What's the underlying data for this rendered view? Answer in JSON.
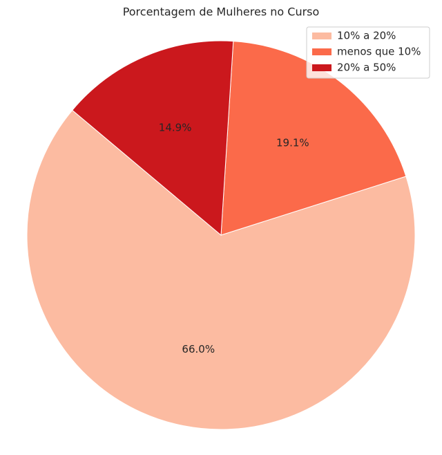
{
  "chart_data": {
    "type": "pie",
    "title": "Porcentagem de Mulheres no Curso",
    "categories": [
      "10% a 20%",
      "menos que 10%",
      "20% a 50%"
    ],
    "values": [
      66.0,
      19.1,
      14.9
    ],
    "value_labels": [
      "66.0%",
      "19.1%",
      "14.9%"
    ],
    "colors": [
      "#fcbba1",
      "#fb6a4a",
      "#cb181d"
    ],
    "legend": "upper right"
  }
}
